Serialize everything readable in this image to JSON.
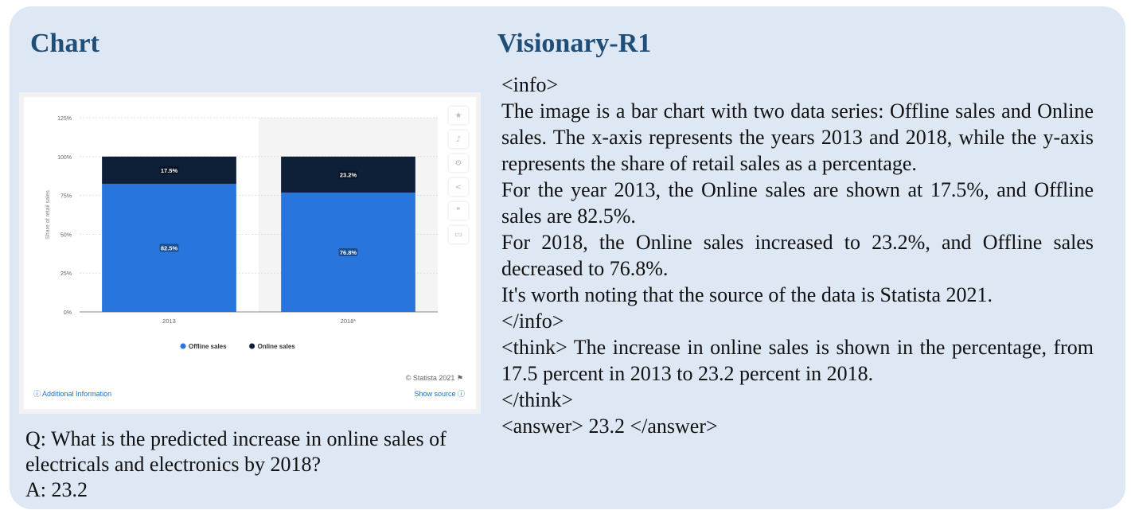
{
  "headings": {
    "left": "Chart",
    "right": "Visionary-R1"
  },
  "qa": {
    "question": "Q: What is the predicted increase in online sales of electricals and electronics by 2018?",
    "answer": "A: 23.2"
  },
  "response": {
    "info_open": "<info>",
    "info_lines": [
      "The image is a bar chart with two data series: Offline sales and Online sales. The x-axis represents the years 2013 and 2018, while the y-axis represents the share of retail sales as a percentage.",
      "For the year 2013, the Online sales are shown at 17.5%, and Offline sales are 82.5%.",
      "For 2018, the Online sales increased to 23.2%, and Offline sales decreased to 76.8%.",
      "It's worth noting that the source of the data is Statista 2021."
    ],
    "info_close": "</info>",
    "think": "<think> The increase in online sales is shown in the percentage, from 17.5 percent in 2013 to 23.2 percent in 2018.",
    "think_close": "</think>",
    "answer": "<answer> 23.2 </answer>"
  },
  "card": {
    "credit": "© Statista 2021",
    "additional_info": "Additional Information",
    "show_source": "Show source",
    "side_icons": [
      "star-icon",
      "bell-icon",
      "gear-icon",
      "share-icon",
      "quote-icon",
      "print-icon"
    ]
  },
  "chart_data": {
    "type": "bar",
    "stacked": true,
    "categories": [
      "2013",
      "2018*"
    ],
    "series": [
      {
        "name": "Offline sales",
        "values": [
          82.5,
          76.8
        ],
        "labels": [
          "82.5%",
          "76.8%"
        ],
        "color": "#2876dd"
      },
      {
        "name": "Online sales",
        "values": [
          17.5,
          23.2
        ],
        "labels": [
          "17.5%",
          "23.2%"
        ],
        "color": "#0e1f38"
      }
    ],
    "ylabel": "Share of retail sales",
    "yticks": [
      0,
      25,
      50,
      75,
      100,
      125
    ],
    "ytick_labels": [
      "0%",
      "25%",
      "50%",
      "75%",
      "100%",
      "125%"
    ],
    "ylim": [
      0,
      125
    ],
    "grid": true,
    "legend_position": "bottom",
    "forecast_shading": "2018*"
  }
}
